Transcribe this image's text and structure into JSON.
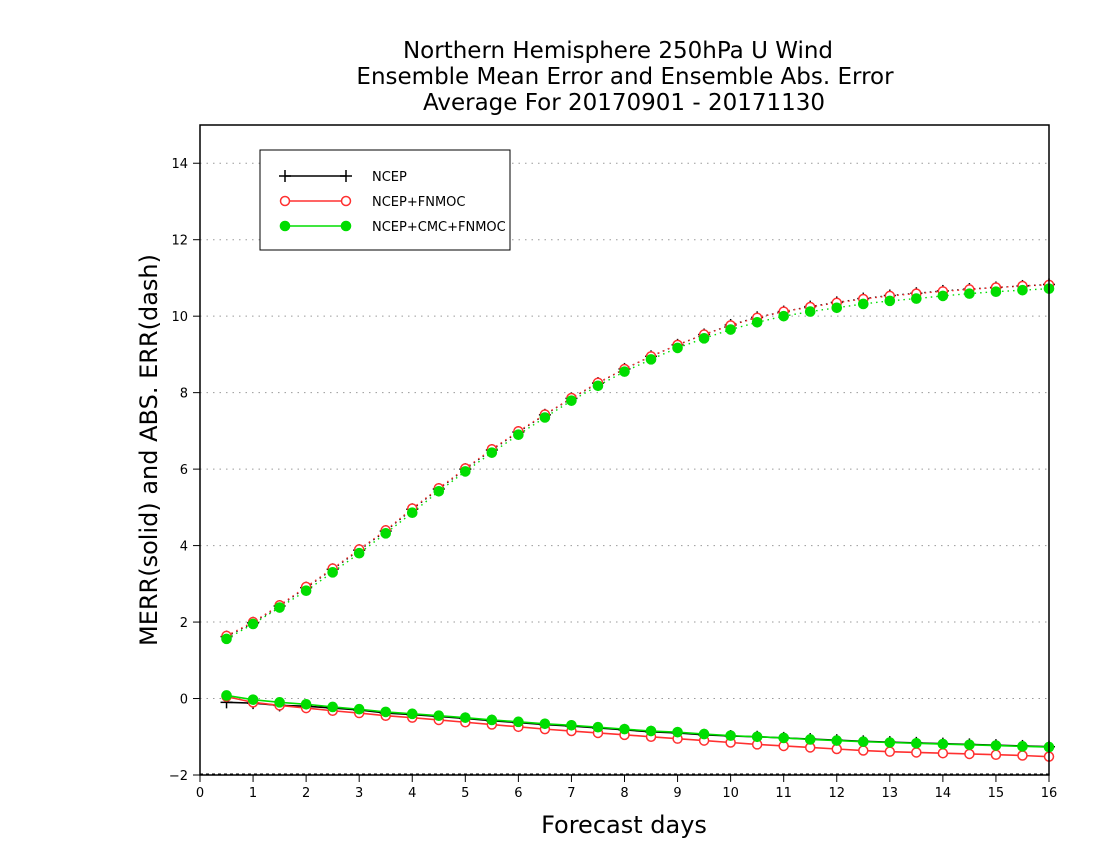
{
  "chart_data": {
    "type": "line",
    "title": [
      "Northern Hemisphere 250hPa U Wind",
      "Ensemble Mean Error and Ensemble Abs. Error",
      "Average For 20170901 - 20171130"
    ],
    "xlabel": "Forecast days",
    "ylabel": "MERR(solid) and ABS. ERR(dash)",
    "xlim": [
      0,
      16
    ],
    "ylim": [
      -2,
      15
    ],
    "xticks": [
      0,
      1,
      2,
      3,
      4,
      5,
      6,
      7,
      8,
      9,
      10,
      11,
      12,
      13,
      14,
      15,
      16
    ],
    "yticks": [
      -2,
      0,
      2,
      4,
      6,
      8,
      10,
      12,
      14
    ],
    "grid": "horizontal dotted",
    "legend_position": "top-left",
    "x": [
      0.5,
      1,
      1.5,
      2,
      2.5,
      3,
      3.5,
      4,
      4.5,
      5,
      5.5,
      6,
      6.5,
      7,
      7.5,
      8,
      8.5,
      9,
      9.5,
      10,
      10.5,
      11,
      11.5,
      12,
      12.5,
      13,
      13.5,
      14,
      14.5,
      15,
      15.5,
      16
    ],
    "series": [
      {
        "name": "NCEP",
        "color": "#000000",
        "marker": "plus",
        "kind": "merr",
        "values": [
          -0.1,
          -0.12,
          -0.18,
          -0.2,
          -0.25,
          -0.3,
          -0.38,
          -0.42,
          -0.47,
          -0.52,
          -0.58,
          -0.63,
          -0.68,
          -0.72,
          -0.77,
          -0.82,
          -0.87,
          -0.9,
          -0.95,
          -0.98,
          -1.0,
          -1.03,
          -1.06,
          -1.09,
          -1.12,
          -1.14,
          -1.16,
          -1.18,
          -1.2,
          -1.22,
          -1.24,
          -1.26
        ]
      },
      {
        "name": "NCEP+FNMOC",
        "color": "#ff3030",
        "marker": "open-circle",
        "kind": "merr",
        "values": [
          0.05,
          -0.1,
          -0.18,
          -0.25,
          -0.32,
          -0.38,
          -0.45,
          -0.5,
          -0.56,
          -0.62,
          -0.68,
          -0.74,
          -0.8,
          -0.85,
          -0.9,
          -0.95,
          -1.0,
          -1.05,
          -1.1,
          -1.15,
          -1.2,
          -1.24,
          -1.28,
          -1.32,
          -1.36,
          -1.39,
          -1.41,
          -1.43,
          -1.45,
          -1.47,
          -1.49,
          -1.52
        ]
      },
      {
        "name": "NCEP+CMC+FNMOC",
        "color": "#00dd00",
        "marker": "filled-circle",
        "kind": "merr",
        "values": [
          0.08,
          -0.03,
          -0.1,
          -0.15,
          -0.22,
          -0.28,
          -0.35,
          -0.4,
          -0.45,
          -0.5,
          -0.56,
          -0.61,
          -0.66,
          -0.7,
          -0.75,
          -0.8,
          -0.85,
          -0.88,
          -0.93,
          -0.97,
          -1.0,
          -1.03,
          -1.07,
          -1.1,
          -1.13,
          -1.15,
          -1.17,
          -1.19,
          -1.21,
          -1.23,
          -1.25,
          -1.27
        ]
      },
      {
        "name": "NCEP",
        "color": "#000000",
        "marker": "plus",
        "kind": "abs",
        "values": [
          1.62,
          1.98,
          2.42,
          2.9,
          3.38,
          3.88,
          4.38,
          4.95,
          5.48,
          6.0,
          6.5,
          6.97,
          7.42,
          7.85,
          8.25,
          8.62,
          8.95,
          9.25,
          9.52,
          9.77,
          9.97,
          10.12,
          10.25,
          10.36,
          10.46,
          10.54,
          10.6,
          10.66,
          10.71,
          10.75,
          10.79,
          10.83
        ]
      },
      {
        "name": "NCEP+FNMOC",
        "color": "#ff3030",
        "marker": "open-circle",
        "kind": "abs",
        "values": [
          1.64,
          2.0,
          2.44,
          2.92,
          3.4,
          3.9,
          4.4,
          4.97,
          5.5,
          6.02,
          6.52,
          6.99,
          7.43,
          7.86,
          8.26,
          8.62,
          8.95,
          9.25,
          9.52,
          9.76,
          9.96,
          10.12,
          10.24,
          10.35,
          10.45,
          10.53,
          10.59,
          10.65,
          10.7,
          10.75,
          10.79,
          10.82
        ]
      },
      {
        "name": "NCEP+CMC+FNMOC",
        "color": "#00dd00",
        "marker": "filled-circle",
        "kind": "abs",
        "values": [
          1.56,
          1.95,
          2.38,
          2.82,
          3.3,
          3.8,
          4.32,
          4.86,
          5.42,
          5.94,
          6.43,
          6.9,
          7.35,
          7.79,
          8.18,
          8.55,
          8.87,
          9.17,
          9.42,
          9.65,
          9.84,
          10.0,
          10.12,
          10.22,
          10.32,
          10.4,
          10.46,
          10.53,
          10.59,
          10.64,
          10.68,
          10.72
        ]
      }
    ]
  }
}
